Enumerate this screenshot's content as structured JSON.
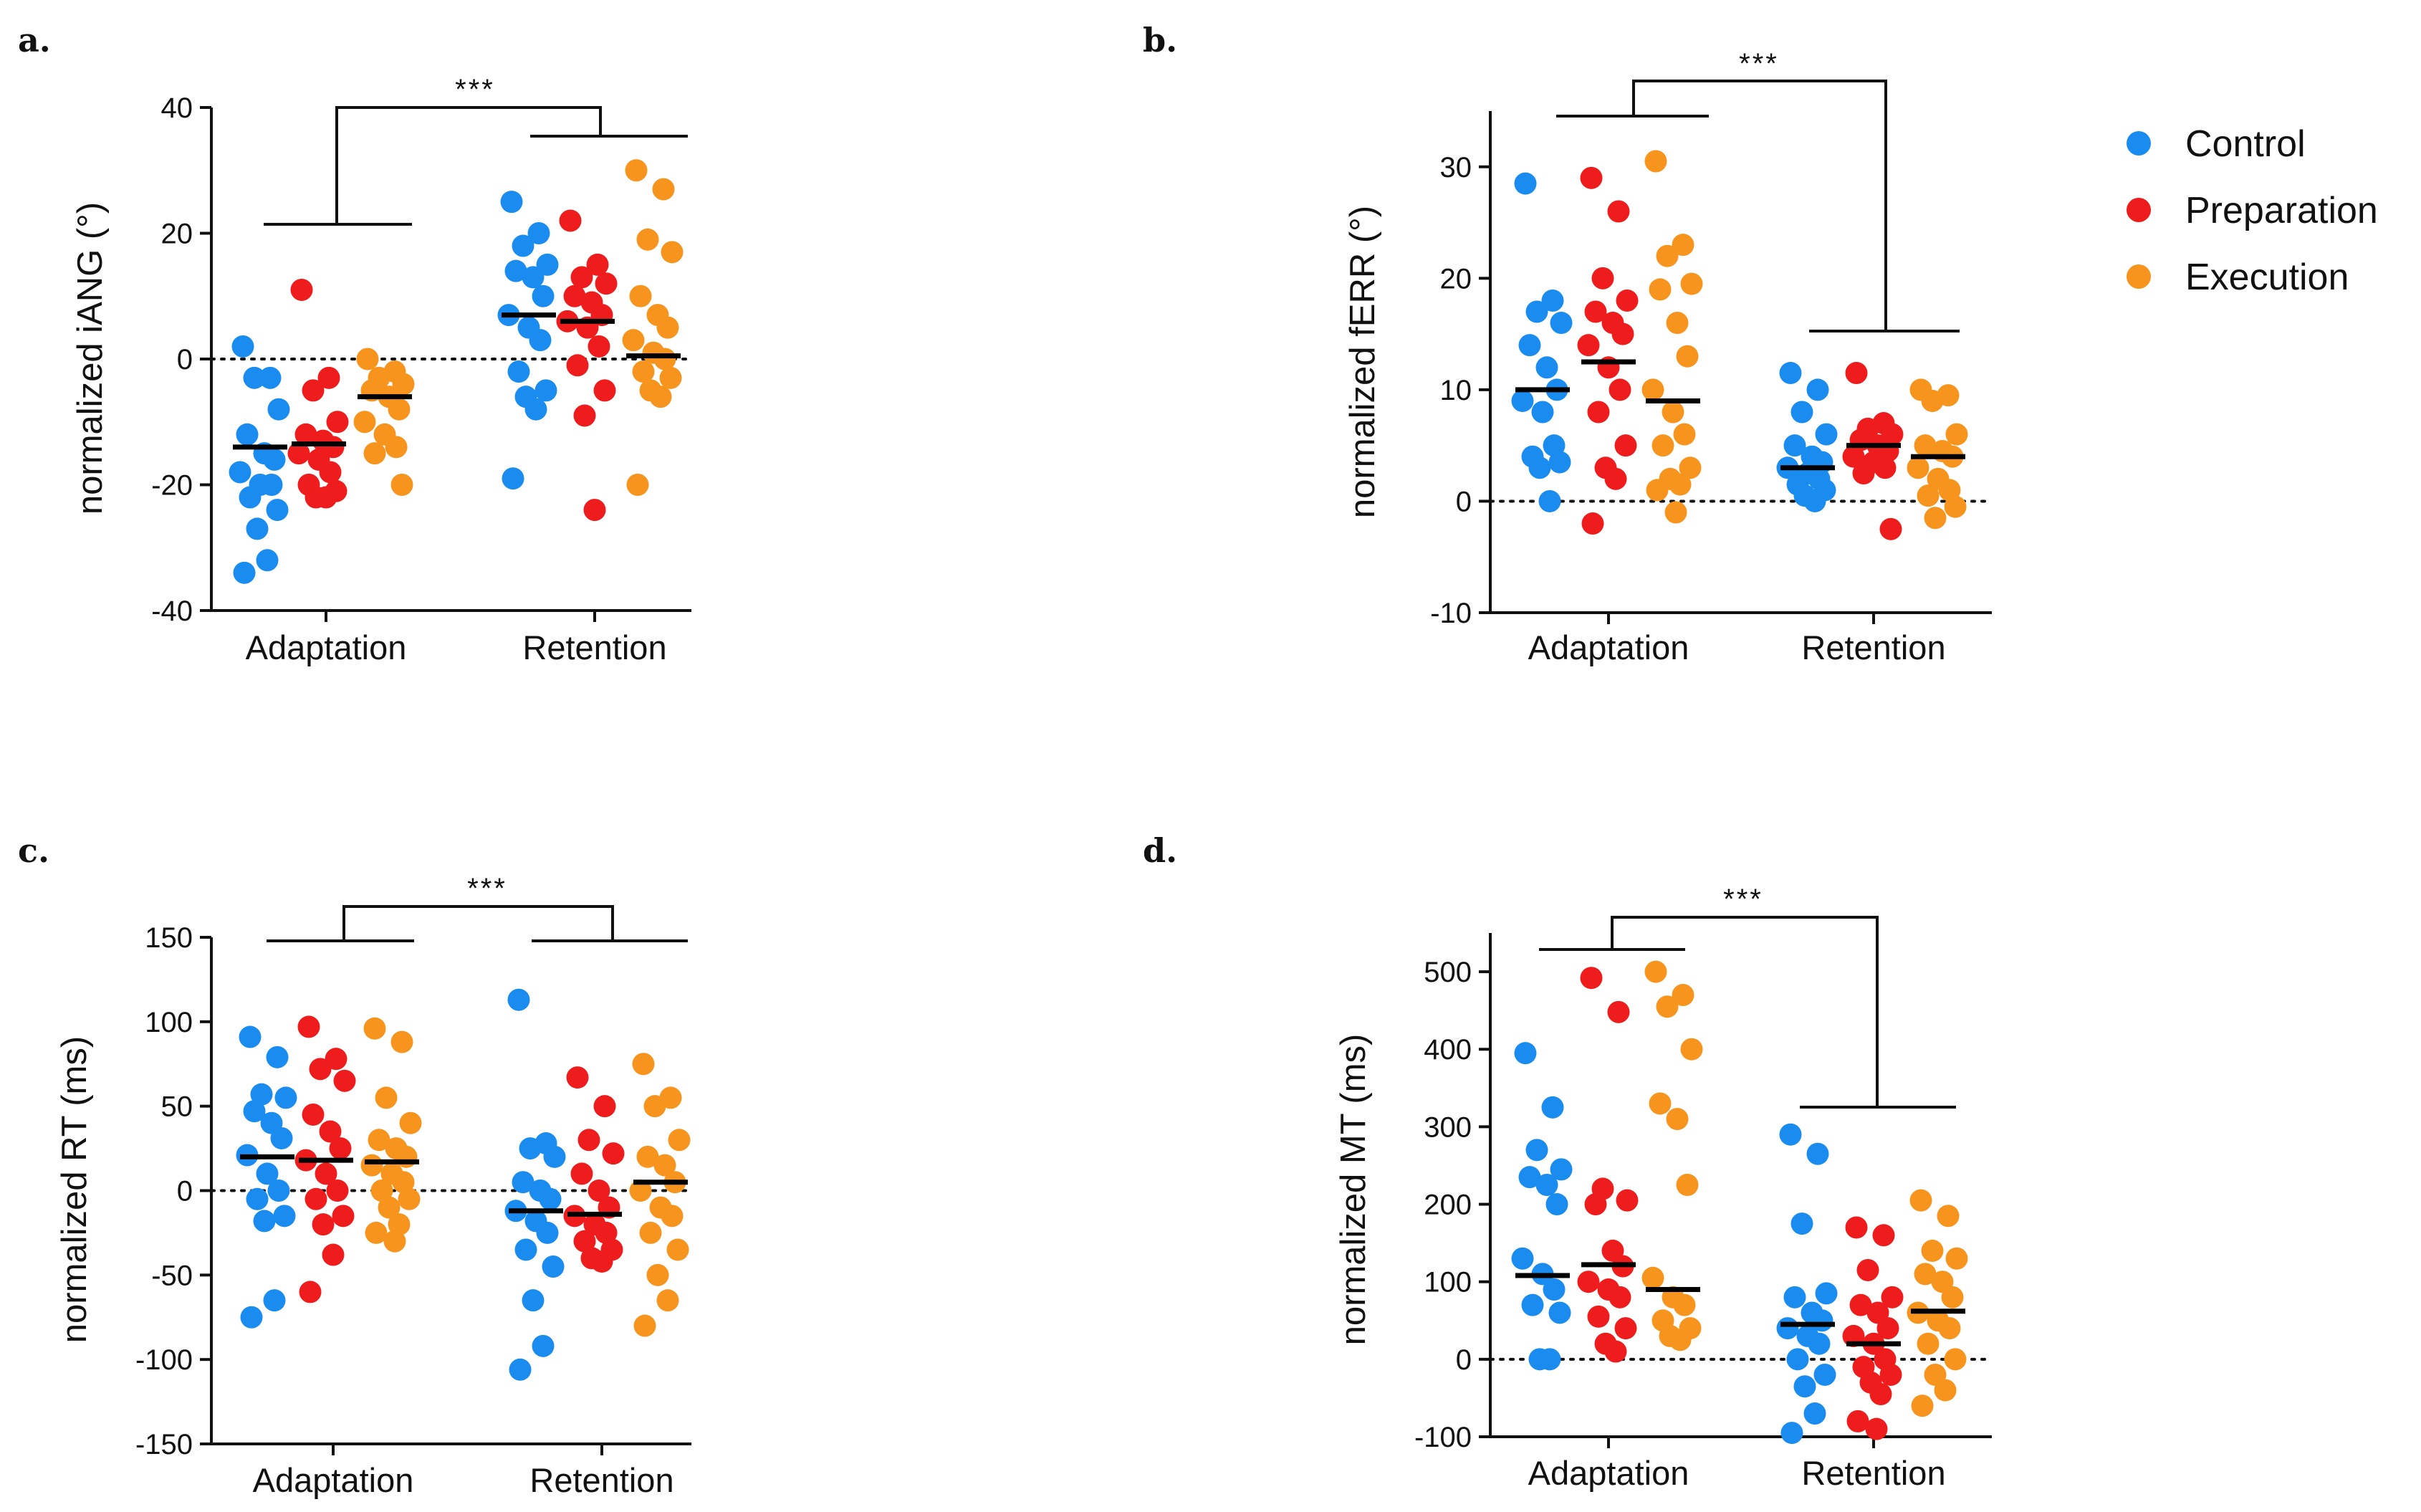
{
  "figure": {
    "legend": [
      {
        "label": "Control",
        "color": "#1a8cf0"
      },
      {
        "label": "Preparation",
        "color": "#ee1c1c"
      },
      {
        "label": "Execution",
        "color": "#f7941d"
      }
    ],
    "significance": "***"
  },
  "chart_data": [
    {
      "panel": "a.",
      "type": "scatter",
      "ylabel": "normalized iANG (°)",
      "ylim": [
        -40,
        40
      ],
      "yticks": [
        -40,
        -20,
        0,
        20,
        40
      ],
      "categories": [
        "Adaptation",
        "Retention"
      ],
      "series": [
        {
          "name": "Control",
          "medians": [
            -14,
            7
          ],
          "points": [
            [
              2,
              -3,
              -3,
              -8,
              -12,
              -15,
              -16,
              -18,
              -20,
              -20,
              -22,
              -24,
              -27,
              -32,
              -34
            ],
            [
              25,
              20,
              18,
              15,
              14,
              13,
              10,
              7,
              5,
              3,
              -2,
              -5,
              -6,
              -8,
              -19
            ]
          ]
        },
        {
          "name": "Preparation",
          "medians": [
            -13.5,
            6
          ],
          "points": [
            [
              11,
              -3,
              -5,
              -10,
              -12,
              -13,
              -14,
              -15,
              -16,
              -18,
              -20,
              -21,
              -22,
              -22
            ],
            [
              22,
              15,
              13,
              12,
              10,
              9,
              7,
              6,
              5,
              2,
              -1,
              -5,
              -9,
              -24
            ]
          ]
        },
        {
          "name": "Execution",
          "medians": [
            -6,
            0.5
          ],
          "points": [
            [
              0,
              -2,
              -3,
              -4,
              -5,
              -6,
              -8,
              -10,
              -12,
              -14,
              -15,
              -20
            ],
            [
              30,
              27,
              19,
              17,
              10,
              7,
              5,
              3,
              1,
              0,
              -2,
              -3,
              -5,
              -6,
              -20
            ]
          ]
        }
      ],
      "significance": "***"
    },
    {
      "panel": "b.",
      "type": "scatter",
      "ylabel": "normalized fERR (°)",
      "ylim": [
        -10,
        35
      ],
      "yticks": [
        -10,
        0,
        10,
        20,
        30
      ],
      "categories": [
        "Adaptation",
        "Retention"
      ],
      "series": [
        {
          "name": "Control",
          "medians": [
            10,
            3
          ],
          "points": [
            [
              28.5,
              18,
              17,
              16,
              14,
              12,
              10,
              9,
              8,
              5,
              4,
              3.5,
              3,
              0
            ],
            [
              11.5,
              10,
              8,
              6,
              5,
              4,
              3.5,
              3,
              2.5,
              2,
              1.5,
              1,
              0.5,
              0
            ]
          ]
        },
        {
          "name": "Preparation",
          "medians": [
            12.5,
            5
          ],
          "points": [
            [
              29,
              26,
              20,
              18,
              17,
              16,
              15,
              14,
              12,
              10,
              8,
              5,
              3,
              2,
              -2
            ],
            [
              11.5,
              7,
              6.5,
              6,
              5.5,
              5,
              4.5,
              4,
              3.5,
              3,
              2.5,
              -2.5
            ]
          ]
        },
        {
          "name": "Execution",
          "medians": [
            9,
            4
          ],
          "points": [
            [
              30.5,
              23,
              22,
              19.5,
              19,
              16,
              13,
              10,
              8,
              6,
              5,
              3,
              2,
              1.5,
              1,
              -1
            ],
            [
              10,
              9.5,
              9,
              6,
              5,
              4.5,
              4,
              3,
              2,
              1,
              0.5,
              -0.5,
              -1.5
            ]
          ]
        }
      ],
      "significance": "***"
    },
    {
      "panel": "c.",
      "type": "scatter",
      "ylabel": "normalized RT (ms)",
      "ylim": [
        -150,
        150
      ],
      "yticks": [
        -150,
        -100,
        -50,
        0,
        50,
        100,
        150
      ],
      "categories": [
        "Adaptation",
        "Retention"
      ],
      "series": [
        {
          "name": "Control",
          "medians": [
            20,
            -12
          ],
          "points": [
            [
              91,
              79,
              57,
              55,
              47,
              40,
              31,
              21,
              10,
              0,
              -5,
              -15,
              -18,
              -65,
              -75
            ],
            [
              113,
              28,
              25,
              20,
              5,
              0,
              -5,
              -12,
              -18,
              -25,
              -35,
              -45,
              -65,
              -92,
              -106
            ]
          ]
        },
        {
          "name": "Preparation",
          "medians": [
            18,
            -14
          ],
          "points": [
            [
              97,
              78,
              72,
              65,
              45,
              35,
              25,
              18,
              10,
              0,
              -5,
              -15,
              -20,
              -38,
              -60
            ],
            [
              67,
              50,
              30,
              22,
              10,
              0,
              -10,
              -15,
              -20,
              -25,
              -30,
              -35,
              -40,
              -42
            ]
          ]
        },
        {
          "name": "Execution",
          "medians": [
            17,
            5
          ],
          "points": [
            [
              96,
              88,
              55,
              40,
              30,
              25,
              20,
              15,
              10,
              5,
              0,
              -5,
              -10,
              -20,
              -25,
              -30
            ],
            [
              75,
              55,
              50,
              30,
              20,
              15,
              5,
              0,
              -10,
              -15,
              -25,
              -35,
              -50,
              -65,
              -80
            ]
          ]
        }
      ],
      "significance": "***"
    },
    {
      "panel": "d.",
      "type": "scatter",
      "ylabel": "normalized MT (ms)",
      "ylim": [
        -100,
        550
      ],
      "yticks": [
        -100,
        0,
        100,
        200,
        300,
        400,
        500
      ],
      "categories": [
        "Adaptation",
        "Retention"
      ],
      "series": [
        {
          "name": "Control",
          "medians": [
            108,
            45
          ],
          "points": [
            [
              395,
              325,
              270,
              245,
              235,
              225,
              200,
              130,
              110,
              90,
              70,
              60,
              0,
              0
            ],
            [
              290,
              265,
              175,
              85,
              80,
              60,
              50,
              40,
              30,
              20,
              0,
              -20,
              -35,
              -70,
              -95
            ]
          ]
        },
        {
          "name": "Preparation",
          "medians": [
            122,
            20
          ],
          "points": [
            [
              492,
              448,
              220,
              205,
              200,
              140,
              120,
              100,
              90,
              80,
              55,
              40,
              20,
              10
            ],
            [
              170,
              160,
              115,
              80,
              70,
              60,
              40,
              30,
              20,
              0,
              -10,
              -20,
              -30,
              -45,
              -80,
              -90
            ]
          ]
        },
        {
          "name": "Execution",
          "medians": [
            90,
            62
          ],
          "points": [
            [
              500,
              470,
              455,
              400,
              330,
              310,
              225,
              105,
              80,
              70,
              50,
              40,
              30,
              25
            ],
            [
              205,
              185,
              140,
              130,
              110,
              100,
              80,
              60,
              50,
              40,
              20,
              0,
              -20,
              -40,
              -60
            ]
          ]
        }
      ],
      "significance": "***"
    }
  ]
}
